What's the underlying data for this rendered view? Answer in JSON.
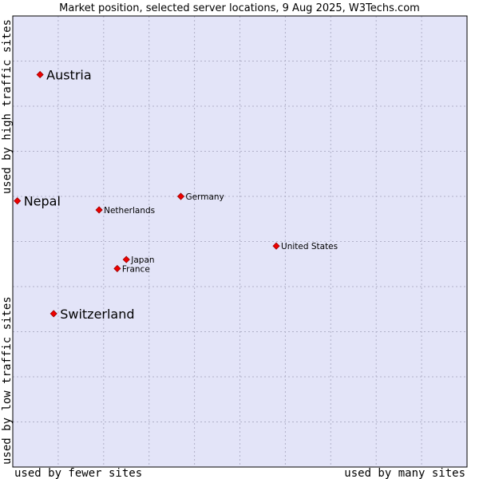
{
  "chart_data": {
    "type": "scatter",
    "title": "Market position, selected server locations, 9 Aug 2025, W3Techs.com",
    "xlabel_left": "used by fewer sites",
    "xlabel_right": "used by many sites",
    "ylabel_bottom": "used by low traffic sites",
    "ylabel_top": "used by high traffic sites",
    "xlim": [
      0,
      10
    ],
    "ylim": [
      0,
      10
    ],
    "grid": true,
    "colors": {
      "plot_background": "#e3e4f8",
      "marker": "#ee0000",
      "marker_outline": "#990000",
      "frame": "#000000"
    },
    "points": [
      {
        "label": "Austria",
        "x": 0.6,
        "y": 8.7,
        "emphasis": "large"
      },
      {
        "label": "Nepal",
        "x": 0.1,
        "y": 5.9,
        "emphasis": "large"
      },
      {
        "label": "Switzerland",
        "x": 0.9,
        "y": 3.4,
        "emphasis": "large"
      },
      {
        "label": "Netherlands",
        "x": 1.9,
        "y": 5.7,
        "emphasis": "small"
      },
      {
        "label": "Germany",
        "x": 3.7,
        "y": 6.0,
        "emphasis": "small"
      },
      {
        "label": "Japan",
        "x": 2.5,
        "y": 4.6,
        "emphasis": "small"
      },
      {
        "label": "France",
        "x": 2.3,
        "y": 4.4,
        "emphasis": "small"
      },
      {
        "label": "United States",
        "x": 5.8,
        "y": 4.9,
        "emphasis": "small"
      }
    ]
  }
}
